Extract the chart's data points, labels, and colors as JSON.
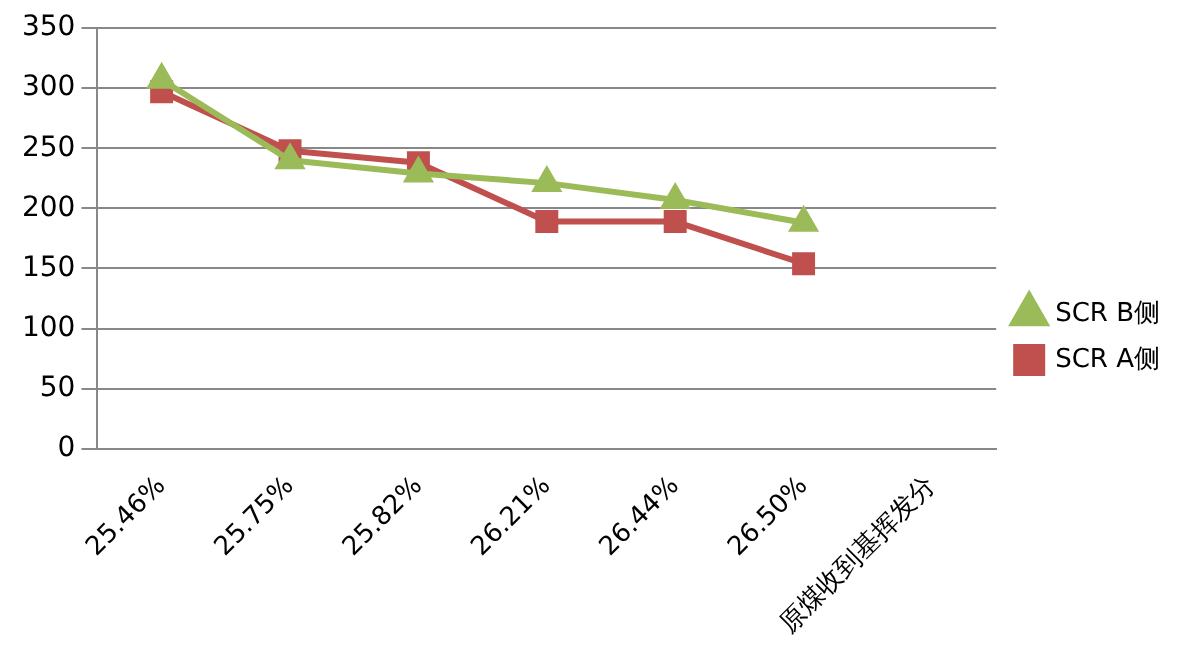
{
  "chart_data": {
    "type": "line",
    "categories": [
      "25.46%",
      "25.75%",
      "25.82%",
      "26.21%",
      "26.44%",
      "26.50%",
      "原煤收到基挥发分"
    ],
    "series": [
      {
        "name": "SCR A侧",
        "color": "#c0504d",
        "marker": "square",
        "values": [
          297,
          248,
          238,
          189,
          189,
          154,
          null
        ]
      },
      {
        "name": "SCR B侧",
        "color": "#9bbb59",
        "marker": "triangle",
        "values": [
          307,
          240,
          229,
          221,
          207,
          188,
          null
        ]
      }
    ],
    "ylim": [
      0,
      350
    ],
    "yticks": [
      0,
      50,
      100,
      150,
      200,
      250,
      300,
      350
    ],
    "grid": "y",
    "legend": "right"
  }
}
